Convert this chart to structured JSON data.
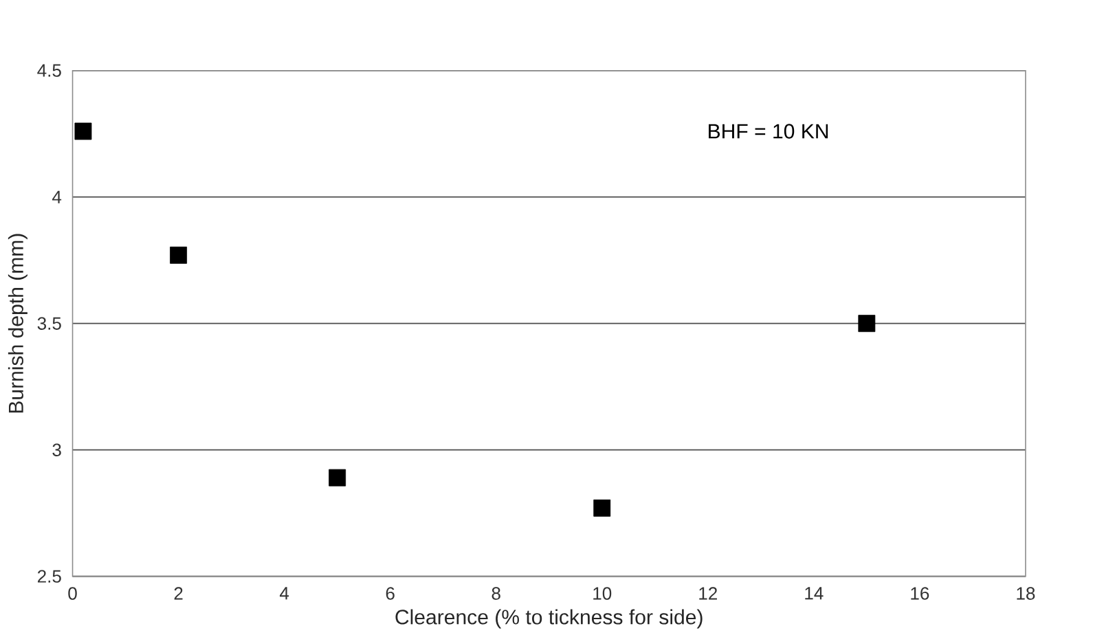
{
  "chart_data": {
    "type": "scatter",
    "xlabel": "Clearence (% to tickness for side)",
    "ylabel": "Burnish depth (mm)",
    "annotations": [
      "BHF = 10 KN"
    ],
    "x": [
      0.2,
      2,
      5,
      10,
      15
    ],
    "values": [
      4.26,
      3.77,
      2.89,
      2.77,
      3.5
    ],
    "color": "#000000",
    "marker": "square",
    "grid": "y",
    "xlim": [
      0,
      18
    ],
    "xticks": [
      0,
      2,
      4,
      6,
      8,
      10,
      12,
      14,
      16,
      18
    ],
    "ylim": [
      2.5,
      4.5
    ],
    "yticks": [
      2.5,
      3,
      3.5,
      4,
      4.5
    ]
  }
}
